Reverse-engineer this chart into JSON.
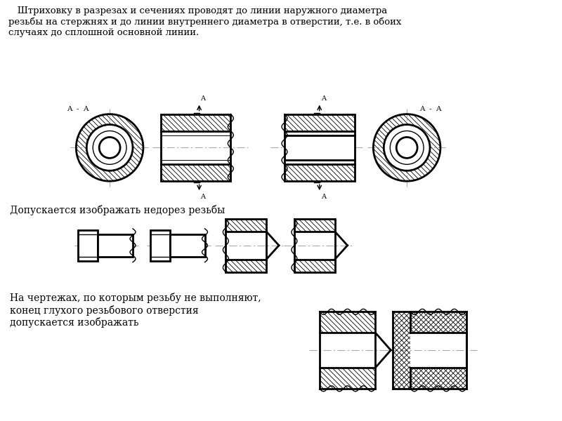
{
  "title_text": "   Штриховку в разрезах и сечениях проводят до линии наружного диаметра\nрезьбы на стержнях и до линии внутреннего диаметра в отверстии, т.е. в обоих\nслучаях до сплошной основной линии.",
  "label2": "Допускается изображать недорез резьбы",
  "label3": "На чертежах, по которым резьбу не выполняют,\nконец глухого резьбового отверстия\nдопускается изображать",
  "bg_color": "#ffffff",
  "line_color": "#000000"
}
